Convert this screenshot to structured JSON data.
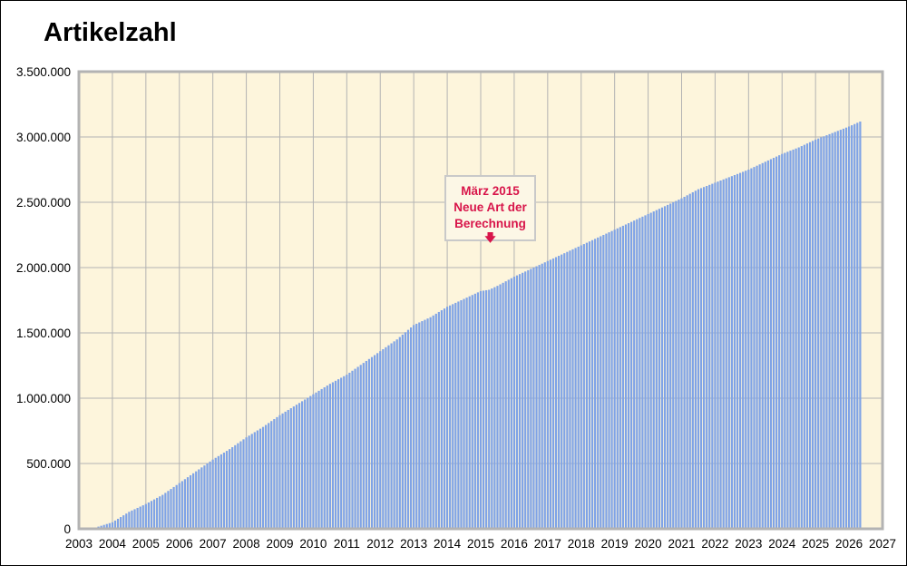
{
  "chart_data": {
    "type": "bar",
    "title": "Artikelzahl",
    "xlim": [
      2003,
      2027
    ],
    "ylim": [
      0,
      3500000
    ],
    "grid": true,
    "x_tick_labels": [
      "2003",
      "2004",
      "2005",
      "2006",
      "2007",
      "2008",
      "2009",
      "2010",
      "2011",
      "2012",
      "2013",
      "2014",
      "2015",
      "2016",
      "2017",
      "2018",
      "2019",
      "2020",
      "2021",
      "2022",
      "2023",
      "2024",
      "2025",
      "2026",
      "2027"
    ],
    "y_tick_labels": [
      "0",
      "500.000",
      "1.000.000",
      "1.500.000",
      "2.000.000",
      "2.500.000",
      "3.000.000",
      "3.500.000"
    ],
    "annotation": {
      "lines": [
        "März 2015",
        "Neue Art der",
        "Berechnung"
      ],
      "arrow": "🡇"
    },
    "bar_color": "#7fa3e6",
    "plot_background": "#fdf5dc",
    "series": [
      {
        "x": [
          2003.5,
          2004.0,
          2004.5,
          2005.0,
          2005.5,
          2006.0,
          2006.5,
          2007.0,
          2007.5,
          2008.0,
          2008.5,
          2009.0,
          2009.5,
          2010.0,
          2010.5,
          2011.0,
          2011.5,
          2012.0,
          2012.5,
          2013.0,
          2013.5,
          2014.0,
          2014.5,
          2015.0,
          2015.25,
          2015.5,
          2016.0,
          2016.5,
          2017.0,
          2017.5,
          2018.0,
          2018.5,
          2019.0,
          2019.5,
          2020.0,
          2020.5,
          2021.0,
          2021.5,
          2022.0,
          2022.5,
          2023.0,
          2023.5,
          2024.0,
          2024.5,
          2025.0,
          2025.5,
          2026.0,
          2026.35
        ],
        "values": [
          10000,
          50000,
          130000,
          190000,
          260000,
          350000,
          440000,
          530000,
          610000,
          700000,
          780000,
          870000,
          950000,
          1030000,
          1110000,
          1180000,
          1270000,
          1360000,
          1450000,
          1560000,
          1620000,
          1700000,
          1760000,
          1820000,
          1830000,
          1860000,
          1930000,
          1990000,
          2050000,
          2110000,
          2170000,
          2230000,
          2290000,
          2350000,
          2410000,
          2470000,
          2530000,
          2600000,
          2650000,
          2700000,
          2750000,
          2810000,
          2870000,
          2920000,
          2980000,
          3030000,
          3080000,
          3120000
        ]
      }
    ]
  }
}
